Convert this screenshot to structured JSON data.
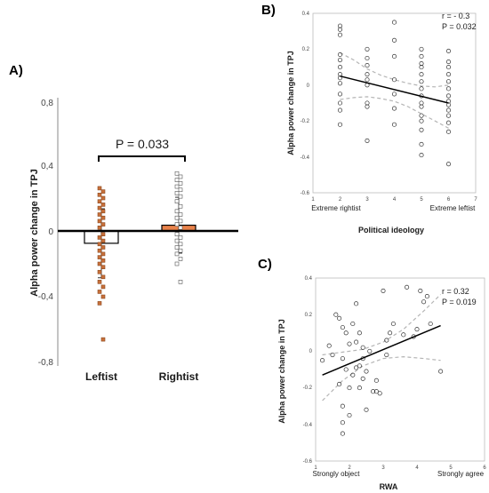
{
  "chart_data": [
    {
      "panel": "A)",
      "type": "bar",
      "ylabel": "Alpha power change in TPJ",
      "ylim": [
        -0.8,
        0.8
      ],
      "yticks": [
        "0,8",
        "0,4",
        "0",
        "-0,4",
        "-0,8"
      ],
      "categories": [
        "Leftist",
        "Rightist"
      ],
      "bar_values": [
        -0.075,
        0.035
      ],
      "error": [
        0.21,
        0.17
      ],
      "bar_colors": [
        "#ffffff",
        "#e9824a"
      ],
      "annotation": "P = 0.033",
      "points": {
        "Leftist": [
          0.26,
          0.24,
          0.22,
          0.2,
          0.18,
          0.16,
          0.14,
          0.12,
          0.1,
          0.08,
          0.06,
          0.04,
          0.02,
          -0.02,
          -0.04,
          -0.06,
          -0.08,
          -0.1,
          -0.12,
          -0.14,
          -0.16,
          -0.18,
          -0.2,
          -0.22,
          -0.25,
          -0.28,
          -0.31,
          -0.34,
          -0.37,
          -0.4,
          -0.44,
          -0.66
        ],
        "Rightist": [
          0.35,
          0.33,
          0.31,
          0.29,
          0.27,
          0.25,
          0.23,
          0.21,
          0.18,
          0.15,
          0.12,
          0.1,
          0.08,
          0.06,
          0.04,
          0.02,
          -0.02,
          -0.04,
          -0.06,
          -0.08,
          -0.1,
          -0.12,
          -0.14,
          -0.17,
          -0.2,
          -0.31
        ]
      }
    },
    {
      "panel": "B)",
      "type": "scatter",
      "xlabel": "Political ideology",
      "ylabel": "Alpha power change in TPJ",
      "xlim": [
        1,
        7
      ],
      "ylim": [
        -0.6,
        0.4
      ],
      "xticks": [
        "1",
        "2",
        "3",
        "4",
        "5",
        "6",
        "7"
      ],
      "yticks": [
        "0.4",
        "0.2",
        "0",
        "-0.2",
        "-0.4",
        "-0.6"
      ],
      "x_end_labels": [
        "Extreme rightist",
        "Extreme leftist"
      ],
      "stats": [
        "r = - 0.3",
        "P = 0.032"
      ],
      "fit": {
        "x": [
          2,
          6
        ],
        "y": [
          0.05,
          -0.1
        ]
      },
      "ci_upper": {
        "x": [
          2,
          2.5,
          3,
          3.5,
          4,
          4.5,
          5,
          5.5,
          6
        ],
        "y": [
          0.18,
          0.14,
          0.09,
          0.055,
          0.03,
          0.01,
          -0.005,
          -0.01,
          0.0
        ]
      },
      "ci_lower": {
        "x": [
          2,
          2.5,
          3,
          3.5,
          4,
          4.5,
          5,
          5.5,
          6
        ],
        "y": [
          -0.08,
          -0.07,
          -0.065,
          -0.075,
          -0.09,
          -0.12,
          -0.16,
          -0.2,
          -0.24
        ]
      },
      "points": [
        [
          2,
          0.33
        ],
        [
          2,
          0.31
        ],
        [
          2,
          0.28
        ],
        [
          2,
          0.17
        ],
        [
          2,
          0.14
        ],
        [
          2,
          0.1
        ],
        [
          2,
          0.06
        ],
        [
          2,
          0.04
        ],
        [
          2,
          0.01
        ],
        [
          2,
          -0.05
        ],
        [
          2,
          -0.1
        ],
        [
          2,
          -0.14
        ],
        [
          2,
          -0.22
        ],
        [
          3,
          0.2
        ],
        [
          3,
          0.15
        ],
        [
          3,
          0.11
        ],
        [
          3,
          0.06
        ],
        [
          3,
          0.03
        ],
        [
          3,
          0.0
        ],
        [
          3,
          -0.1
        ],
        [
          3,
          -0.12
        ],
        [
          3,
          -0.31
        ],
        [
          4,
          0.35
        ],
        [
          4,
          0.25
        ],
        [
          4,
          0.16
        ],
        [
          4,
          0.03
        ],
        [
          4,
          -0.05
        ],
        [
          4,
          -0.13
        ],
        [
          4,
          -0.22
        ],
        [
          5,
          0.2
        ],
        [
          5,
          0.16
        ],
        [
          5,
          0.12
        ],
        [
          5,
          0.1
        ],
        [
          5,
          0.06
        ],
        [
          5,
          0.02
        ],
        [
          5,
          -0.02
        ],
        [
          5,
          -0.06
        ],
        [
          5,
          -0.1
        ],
        [
          5,
          -0.12
        ],
        [
          5,
          -0.17
        ],
        [
          5,
          -0.2
        ],
        [
          5,
          -0.25
        ],
        [
          5,
          -0.33
        ],
        [
          5,
          -0.39
        ],
        [
          6,
          0.19
        ],
        [
          6,
          0.13
        ],
        [
          6,
          0.1
        ],
        [
          6,
          0.06
        ],
        [
          6,
          0.02
        ],
        [
          6,
          -0.02
        ],
        [
          6,
          -0.06
        ],
        [
          6,
          -0.09
        ],
        [
          6,
          -0.11
        ],
        [
          6,
          -0.14
        ],
        [
          6,
          -0.17
        ],
        [
          6,
          -0.21
        ],
        [
          6,
          -0.26
        ],
        [
          6,
          -0.44
        ]
      ]
    },
    {
      "panel": "C)",
      "type": "scatter",
      "xlabel": "RWA",
      "ylabel": "Alpha power change in TPJ",
      "xlim": [
        1,
        6
      ],
      "ylim": [
        -0.6,
        0.4
      ],
      "xticks": [
        "1",
        "2",
        "3",
        "4",
        "5",
        "6"
      ],
      "yticks": [
        "0.4",
        "0.2",
        "0",
        "-0.2",
        "-0.4",
        "-0.6"
      ],
      "x_end_labels": [
        "Strongly object",
        "Strongly agree"
      ],
      "stats": [
        "r = 0.32",
        "P = 0.019"
      ],
      "fit": {
        "x": [
          1.2,
          4.7
        ],
        "y": [
          -0.13,
          0.14
        ]
      },
      "ci_upper": {
        "x": [
          1.2,
          1.8,
          2.4,
          3.0,
          3.6,
          4.2,
          4.7
        ],
        "y": [
          -0.02,
          -0.005,
          0.01,
          0.05,
          0.12,
          0.22,
          0.31
        ]
      },
      "ci_lower": {
        "x": [
          1.2,
          1.8,
          2.4,
          3.0,
          3.6,
          4.2,
          4.7
        ],
        "y": [
          -0.27,
          -0.16,
          -0.08,
          -0.04,
          -0.03,
          -0.04,
          -0.05
        ]
      },
      "points": [
        [
          1.2,
          -0.05
        ],
        [
          1.4,
          0.03
        ],
        [
          1.5,
          -0.02
        ],
        [
          1.6,
          0.2
        ],
        [
          1.7,
          0.18
        ],
        [
          1.7,
          -0.18
        ],
        [
          1.8,
          0.13
        ],
        [
          1.8,
          -0.04
        ],
        [
          1.8,
          -0.3
        ],
        [
          1.8,
          -0.39
        ],
        [
          1.8,
          -0.45
        ],
        [
          1.9,
          0.1
        ],
        [
          1.9,
          -0.1
        ],
        [
          2.0,
          0.04
        ],
        [
          2.0,
          -0.2
        ],
        [
          2.0,
          -0.35
        ],
        [
          2.1,
          0.15
        ],
        [
          2.1,
          -0.13
        ],
        [
          2.2,
          0.26
        ],
        [
          2.2,
          0.05
        ],
        [
          2.2,
          -0.09
        ],
        [
          2.3,
          0.1
        ],
        [
          2.3,
          -0.08
        ],
        [
          2.3,
          -0.2
        ],
        [
          2.4,
          0.02
        ],
        [
          2.4,
          -0.04
        ],
        [
          2.4,
          -0.15
        ],
        [
          2.5,
          -0.11
        ],
        [
          2.5,
          -0.32
        ],
        [
          2.6,
          0.0
        ],
        [
          2.7,
          -0.22
        ],
        [
          2.8,
          -0.16
        ],
        [
          2.8,
          -0.22
        ],
        [
          2.9,
          -0.23
        ],
        [
          3.0,
          0.33
        ],
        [
          3.1,
          0.06
        ],
        [
          3.1,
          -0.02
        ],
        [
          3.2,
          0.1
        ],
        [
          3.3,
          0.15
        ],
        [
          3.6,
          0.09
        ],
        [
          3.7,
          0.35
        ],
        [
          3.9,
          0.08
        ],
        [
          4.0,
          0.12
        ],
        [
          4.1,
          0.33
        ],
        [
          4.2,
          0.27
        ],
        [
          4.3,
          0.3
        ],
        [
          4.4,
          0.15
        ],
        [
          4.7,
          -0.11
        ]
      ]
    }
  ]
}
